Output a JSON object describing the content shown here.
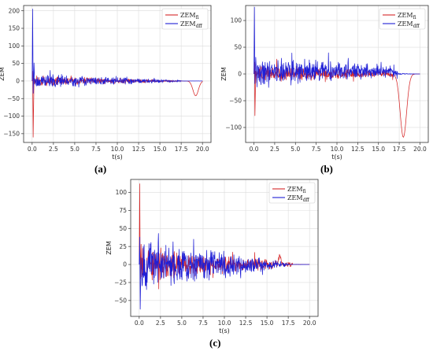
{
  "chart_data": [
    {
      "type": "line",
      "panel_label": "(a)",
      "xlabel": "t(s)",
      "ylabel": "ZEM",
      "xlim": [
        -1,
        21
      ],
      "ylim": [
        -175,
        215
      ],
      "xticks": [
        0.0,
        2.5,
        5.0,
        7.5,
        10.0,
        12.5,
        15.0,
        17.5,
        20.0
      ],
      "yticks": [
        200,
        150,
        100,
        50,
        0,
        -50,
        -100,
        -150
      ],
      "xtick_labels": [
        "0.0",
        "2.5",
        "5.0",
        "7.5",
        "10.0",
        "12.5",
        "15.0",
        "17.5",
        "20.0"
      ],
      "ytick_labels": [
        "200",
        "150",
        "100",
        "50",
        "0",
        "−50",
        "−100",
        "−150"
      ],
      "grid": true,
      "legend": "top-right",
      "series": [
        {
          "name": "ZEM",
          "name_sub": "fi",
          "color": "#d62728",
          "seed": 11,
          "spike_max": 28,
          "spike_min": -160,
          "noise_start": 16,
          "noise_end": 2,
          "end_noise_t": 17.5,
          "dip_t": 19.2,
          "dip_v": -42,
          "dip_w": 0.45
        },
        {
          "name": "ZEM",
          "name_sub": "dff",
          "color": "#1f1fd6",
          "seed": 23,
          "spike_max": 205,
          "spike_min": -35,
          "noise_start": 22,
          "noise_end": 3,
          "end_noise_t": 17.5,
          "dip_t": null,
          "dip_v": 0,
          "dip_w": 0
        }
      ]
    },
    {
      "type": "line",
      "panel_label": "(b)",
      "xlabel": "t(s)",
      "ylabel": "ZEM",
      "xlim": [
        -1,
        21
      ],
      "ylim": [
        -128,
        128
      ],
      "xticks": [
        0.0,
        2.5,
        5.0,
        7.5,
        10.0,
        12.5,
        15.0,
        17.5,
        20.0
      ],
      "yticks": [
        100,
        50,
        0,
        -50,
        -100
      ],
      "xtick_labels": [
        "0.0",
        "2.5",
        "5.0",
        "7.5",
        "10.0",
        "12.5",
        "15.0",
        "17.5",
        "20.0"
      ],
      "ytick_labels": [
        "100",
        "50",
        "0",
        "−50",
        "−100"
      ],
      "grid": true,
      "legend": "top-right",
      "series": [
        {
          "name": "ZEM",
          "name_sub": "fi",
          "color": "#d62728",
          "seed": 37,
          "spike_max": 22,
          "spike_min": -78,
          "noise_start": 18,
          "noise_end": 6,
          "end_noise_t": 16.8,
          "dip_t": 18.0,
          "dip_v": -118,
          "dip_w": 0.55
        },
        {
          "name": "ZEM",
          "name_sub": "dff",
          "color": "#1f1fd6",
          "seed": 41,
          "spike_max": 125,
          "spike_min": -18,
          "noise_start": 30,
          "noise_end": 12,
          "end_noise_t": 17.3,
          "dip_t": null,
          "dip_v": 0,
          "dip_w": 0
        }
      ]
    },
    {
      "type": "line",
      "panel_label": "(c)",
      "xlabel": "t(s)",
      "ylabel": "ZEM",
      "xlim": [
        -1,
        21
      ],
      "ylim": [
        -72,
        118
      ],
      "xticks": [
        0.0,
        2.5,
        5.0,
        7.5,
        10.0,
        12.5,
        15.0,
        17.5,
        20.0
      ],
      "yticks": [
        100,
        75,
        50,
        25,
        0,
        -25,
        -50
      ],
      "xtick_labels": [
        "0.0",
        "2.5",
        "5.0",
        "7.5",
        "10.0",
        "12.5",
        "15.0",
        "17.5",
        "20.0"
      ],
      "ytick_labels": [
        "100",
        "75",
        "50",
        "25",
        "0",
        "−25",
        "−50"
      ],
      "grid": true,
      "legend": "top-right",
      "series": [
        {
          "name": "ZEM",
          "name_sub": "fi",
          "color": "#d62728",
          "seed": 53,
          "spike_max": 112,
          "spike_min": -20,
          "noise_start": 28,
          "noise_end": 3,
          "end_noise_t": 18.0,
          "dip_t": 16.5,
          "dip_v": 12,
          "dip_w": 0.2
        },
        {
          "name": "ZEM",
          "name_sub": "dff",
          "color": "#1f1fd6",
          "seed": 67,
          "spike_max": 38,
          "spike_min": -62,
          "noise_start": 38,
          "noise_end": 3,
          "end_noise_t": 17.5,
          "dip_t": null,
          "dip_v": 0,
          "dip_w": 0
        }
      ]
    }
  ]
}
